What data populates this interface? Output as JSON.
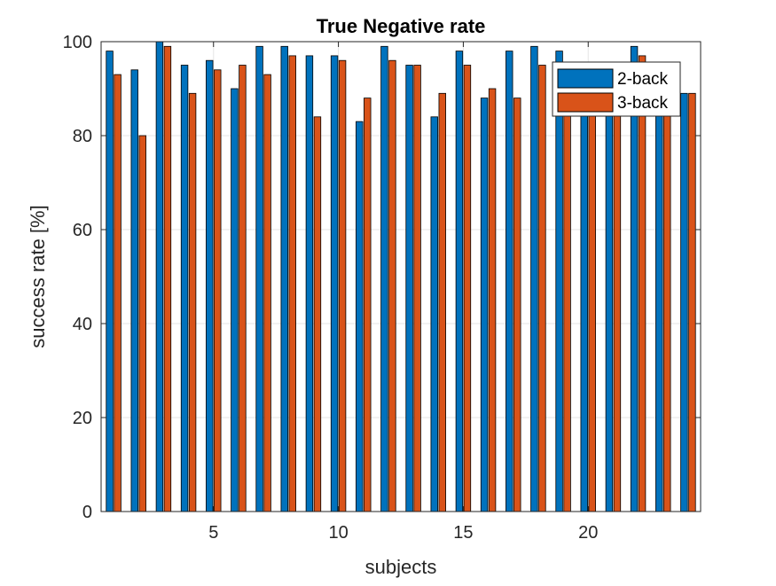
{
  "chart_data": {
    "type": "bar",
    "title": "True Negative rate",
    "xlabel": "subjects",
    "ylabel": "success rate [%]",
    "ylim": [
      0,
      100
    ],
    "xlim": [
      0.5,
      24.5
    ],
    "x": [
      1,
      2,
      3,
      4,
      5,
      6,
      7,
      8,
      9,
      10,
      11,
      12,
      13,
      14,
      15,
      16,
      17,
      18,
      19,
      20,
      21,
      22,
      23,
      24
    ],
    "xticks": [
      5,
      10,
      15,
      20
    ],
    "yticks": [
      0,
      20,
      40,
      60,
      80,
      100
    ],
    "grid": true,
    "legend_position": "top-right",
    "series": [
      {
        "name": "2-back",
        "color": "#0072BD",
        "values": [
          98,
          94,
          100,
          95,
          96,
          90,
          99,
          99,
          97,
          97,
          83,
          99,
          95,
          84,
          98,
          88,
          98,
          99,
          98,
          86,
          85,
          99,
          89,
          89
        ]
      },
      {
        "name": "3-back",
        "color": "#D95319",
        "values": [
          93,
          80,
          99,
          89,
          94,
          95,
          93,
          97,
          84,
          96,
          88,
          96,
          95,
          89,
          95,
          90,
          88,
          95,
          94,
          86,
          86,
          97,
          86,
          89
        ]
      }
    ]
  }
}
